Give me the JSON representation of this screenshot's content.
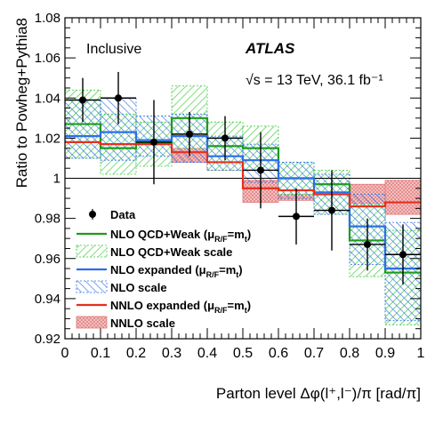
{
  "chart_data": {
    "type": "step",
    "xlabel": "Parton level Δφ(l⁺,l⁻)/π [rad/π]",
    "ylabel": "Ratio to Powheg+Pythia8",
    "xlim": [
      0,
      1
    ],
    "ylim": [
      0.92,
      1.08
    ],
    "x_ticks": [
      "0",
      "0.1",
      "0.2",
      "0.3",
      "0.4",
      "0.5",
      "0.6",
      "0.7",
      "0.8",
      "0.9",
      "1"
    ],
    "y_ticks": [
      "0.92",
      "0.94",
      "0.96",
      "0.98",
      "1",
      "1.02",
      "1.04",
      "1.06",
      "1.08"
    ],
    "reference_line": 1.0,
    "annotations": {
      "region": "Inclusive",
      "experiment": "ATLAS",
      "energy": "√s = 13 TeV, 36.1 fb⁻¹"
    },
    "bin_edges": [
      0,
      0.1,
      0.2,
      0.3,
      0.4,
      0.5,
      0.6,
      0.7,
      0.8,
      0.9,
      1.0
    ],
    "data": {
      "name": "Data",
      "x": [
        0.05,
        0.15,
        0.25,
        0.35,
        0.45,
        0.55,
        0.65,
        0.75,
        0.85,
        0.95
      ],
      "y": [
        1.039,
        1.04,
        1.018,
        1.022,
        1.02,
        1.004,
        0.981,
        0.984,
        0.967,
        0.962
      ],
      "yerr": [
        0.011,
        0.013,
        0.021,
        0.011,
        0.011,
        0.019,
        0.014,
        0.02,
        0.013,
        0.015
      ]
    },
    "series": [
      {
        "name": "NLO QCD+Weak",
        "color": "#1e9a1e",
        "values": [
          1.027,
          1.015,
          1.018,
          1.03,
          1.016,
          1.015,
          1.0,
          0.997,
          0.969,
          0.953
        ],
        "band": {
          "name": "NLO QCD+Weak scale",
          "color": "#33cc33",
          "low": [
            1.01,
            1.002,
            1.006,
            1.015,
            1.004,
            1.004,
            0.992,
            0.982,
            0.951,
            0.927
          ],
          "high": [
            1.044,
            1.032,
            1.028,
            1.046,
            1.028,
            1.026,
            1.008,
            1.004,
            0.987,
            0.974
          ]
        }
      },
      {
        "name": "NLO expanded",
        "color": "#2e6ee6",
        "values": [
          1.021,
          1.023,
          1.019,
          1.021,
          1.011,
          1.009,
          1.0,
          0.993,
          0.976,
          0.955
        ],
        "band": {
          "name": "NLO scale",
          "color": "#2e6ee6",
          "low": [
            1.01,
            1.009,
            1.011,
            1.008,
            1.004,
            0.998,
            0.99,
            0.982,
            0.957,
            0.929
          ],
          "high": [
            1.039,
            1.04,
            1.031,
            1.032,
            1.021,
            1.017,
            1.008,
            1.002,
            0.992,
            0.978
          ]
        }
      },
      {
        "name": "NNLO expanded",
        "color": "#e62e1e",
        "values": [
          1.018,
          1.017,
          1.017,
          1.013,
          1.008,
          0.995,
          0.994,
          0.992,
          0.986,
          0.988
        ],
        "band": {
          "name": "NNLO scale",
          "color": "#e88a8a",
          "low": [
            1.011,
            1.011,
            1.012,
            1.008,
            1.004,
            0.988,
            0.989,
            0.987,
            0.98,
            0.982
          ],
          "high": [
            1.022,
            1.022,
            1.022,
            1.018,
            1.012,
            0.999,
            0.998,
            0.997,
            0.997,
            0.999
          ]
        }
      }
    ],
    "legend": {
      "placement": "bottom-left",
      "entries": [
        {
          "label": "Data",
          "sub": "",
          "suffix": ""
        },
        {
          "label": "NLO QCD+Weak (μ",
          "sub": "R/F",
          "suffix": "=m",
          "sub2": "t",
          "close": ")"
        },
        {
          "label": "NLO QCD+Weak scale",
          "sub": "",
          "suffix": ""
        },
        {
          "label": "NLO expanded (μ",
          "sub": "R/F",
          "suffix": "=m",
          "sub2": "t",
          "close": ")"
        },
        {
          "label": "NLO scale",
          "sub": "",
          "suffix": ""
        },
        {
          "label": "NNLO expanded (μ",
          "sub": "R/F",
          "suffix": "=m",
          "sub2": "t",
          "close": ")"
        },
        {
          "label": "NNLO scale",
          "sub": "",
          "suffix": ""
        }
      ]
    }
  }
}
